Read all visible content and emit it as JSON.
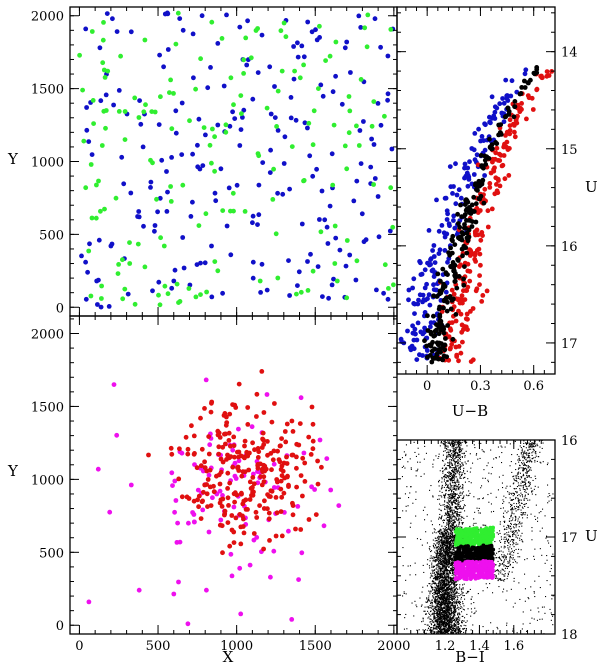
{
  "figure": {
    "description_colors": {
      "blue": "#1010c8",
      "green": "#30ee30",
      "black": "#000000",
      "red": "#e01010",
      "magenta": "#ee10ee"
    }
  },
  "chart_data": [
    {
      "id": "xy_top",
      "type": "scatter",
      "xlabel": "",
      "ylabel": "Y",
      "xlim": [
        -60,
        2020
      ],
      "ylim": [
        -60,
        2060
      ],
      "xticks": [
        0,
        500,
        1000,
        1500,
        2000
      ],
      "yticks": [
        0,
        500,
        1000,
        1500,
        2000
      ],
      "yticklabels": [
        "0",
        "500",
        "1000",
        "1500",
        "2000"
      ],
      "series": [
        {
          "name": "blue",
          "color": "#1010c8",
          "count": 230,
          "seed": 11,
          "points": [
            [
              40,
              1910
            ],
            [
              130,
              1780
            ],
            [
              210,
              1980
            ],
            [
              330,
              1890
            ],
            [
              510,
              1730
            ],
            [
              660,
              1900
            ],
            [
              780,
              2000
            ],
            [
              880,
              1810
            ],
            [
              1040,
              1700
            ],
            [
              1210,
              1650
            ],
            [
              1480,
              1890
            ],
            [
              1700,
              1820
            ],
            [
              1880,
              1980
            ],
            [
              1960,
              1420
            ],
            [
              1450,
              1230
            ],
            [
              1020,
              1110
            ],
            [
              900,
              950
            ],
            [
              720,
              1050
            ],
            [
              560,
              790
            ],
            [
              380,
              620
            ],
            [
              200,
              420
            ],
            [
              110,
              180
            ],
            [
              310,
              90
            ],
            [
              600,
              180
            ],
            [
              840,
              420
            ],
            [
              1100,
              580
            ],
            [
              1330,
              320
            ],
            [
              1560,
              600
            ],
            [
              1810,
              450
            ],
            [
              1900,
              760
            ]
          ]
        },
        {
          "name": "green",
          "color": "#30ee30",
          "count": 170,
          "seed": 23,
          "points": [
            [
              20,
              1490
            ],
            [
              90,
              1260
            ],
            [
              180,
              1620
            ],
            [
              290,
              1150
            ],
            [
              420,
              1390
            ],
            [
              580,
              1560
            ],
            [
              700,
              1280
            ],
            [
              860,
              1170
            ],
            [
              980,
              1390
            ],
            [
              1140,
              1040
            ],
            [
              1290,
              1620
            ],
            [
              1520,
              1500
            ],
            [
              1620,
              1250
            ],
            [
              1780,
              1110
            ],
            [
              1940,
              1310
            ],
            [
              1980,
              820
            ],
            [
              1700,
              950
            ],
            [
              1430,
              870
            ],
            [
              1230,
              740
            ],
            [
              980,
              660
            ],
            [
              760,
              560
            ],
            [
              540,
              420
            ],
            [
              320,
              300
            ],
            [
              140,
              60
            ],
            [
              40,
              820
            ],
            [
              640,
              40
            ],
            [
              880,
              250
            ],
            [
              1150,
              180
            ],
            [
              1380,
              90
            ],
            [
              1640,
              180
            ]
          ]
        }
      ]
    },
    {
      "id": "xy_bottom",
      "type": "scatter",
      "xlabel": "X",
      "ylabel": "Y",
      "xlim": [
        -60,
        2020
      ],
      "ylim": [
        -60,
        2120
      ],
      "xticks": [
        0,
        500,
        1000,
        1500,
        2000
      ],
      "xticklabels": [
        "0",
        "500",
        "1000",
        "1500",
        "2000"
      ],
      "yticks": [
        0,
        500,
        1000,
        1500,
        2000
      ],
      "yticklabels": [
        "0",
        "500",
        "1000",
        "1500",
        "2000"
      ],
      "series": [
        {
          "name": "red",
          "color": "#e01010",
          "count": 270,
          "seed": 37,
          "center": [
            1060,
            1070
          ],
          "spread": [
            200,
            240
          ],
          "points": [
            [
              1160,
              1740
            ],
            [
              880,
              1330
            ],
            [
              1240,
              1520
            ],
            [
              900,
              860
            ],
            [
              1330,
              960
            ],
            [
              1020,
              760
            ],
            [
              1140,
              1190
            ],
            [
              800,
              1080
            ]
          ]
        },
        {
          "name": "magenta",
          "color": "#ee10ee",
          "count": 110,
          "seed": 53,
          "center": [
            990,
            930
          ],
          "spread": [
            300,
            300
          ],
          "points": [
            [
              220,
              1650
            ],
            [
              120,
              1070
            ],
            [
              60,
              160
            ],
            [
              380,
              240
            ],
            [
              690,
              10
            ],
            [
              640,
              570
            ],
            [
              1650,
              820
            ],
            [
              1350,
              40
            ],
            [
              1410,
              1560
            ],
            [
              1530,
              1270
            ]
          ]
        }
      ]
    },
    {
      "id": "cmd_top",
      "type": "scatter",
      "xlabel": "U−B",
      "ylabel": "U",
      "xlim": [
        -0.17,
        0.72
      ],
      "ylim": [
        17.32,
        13.54
      ],
      "xticks": [
        0,
        0.3,
        0.6
      ],
      "xticklabels": [
        "0",
        "0.3",
        "0.6"
      ],
      "yticks": [
        14,
        15,
        16,
        17
      ],
      "yticklabels": [
        "14",
        "15",
        "16",
        "17"
      ],
      "sequence": {
        "U": [
          14.15,
          14.6,
          15.0,
          15.5,
          16.0,
          16.5,
          17.0,
          17.2
        ],
        "UB_black": [
          0.62,
          0.47,
          0.36,
          0.26,
          0.18,
          0.11,
          0.05,
          0.07
        ]
      },
      "series": [
        {
          "name": "black",
          "color": "#000000",
          "count": 230,
          "seed": 61,
          "offset": 0.0,
          "width": 0.025
        },
        {
          "name": "blue",
          "color": "#1010c8",
          "count": 200,
          "seed": 71,
          "offset": -0.09,
          "width": 0.045
        },
        {
          "name": "red",
          "color": "#e01010",
          "count": 220,
          "seed": 83,
          "offset": 0.08,
          "width": 0.035
        }
      ]
    },
    {
      "id": "cmd_bottom",
      "type": "scatter",
      "xlabel": "B−I",
      "ylabel": "U",
      "xlim": [
        0.92,
        1.84
      ],
      "ylim": [
        18,
        16
      ],
      "xticks": [
        1.2,
        1.4,
        1.6
      ],
      "xticklabels": [
        "1.2",
        "1.4",
        "1.6"
      ],
      "yticks": [
        16,
        17,
        18
      ],
      "yticklabels": [
        "16",
        "17",
        "18"
      ],
      "series": [
        {
          "name": "field",
          "color": "#000000",
          "count": 5200,
          "seed": 97
        },
        {
          "name": "green",
          "color": "#30ee30",
          "count": 260,
          "seed": 101,
          "band": [
            16.92,
            17.1
          ]
        },
        {
          "name": "black",
          "color": "#000000",
          "count": 200,
          "seed": 103,
          "band": [
            17.1,
            17.26
          ]
        },
        {
          "name": "magenta",
          "color": "#ee10ee",
          "count": 260,
          "seed": 107,
          "band": [
            17.26,
            17.44
          ]
        }
      ]
    }
  ]
}
